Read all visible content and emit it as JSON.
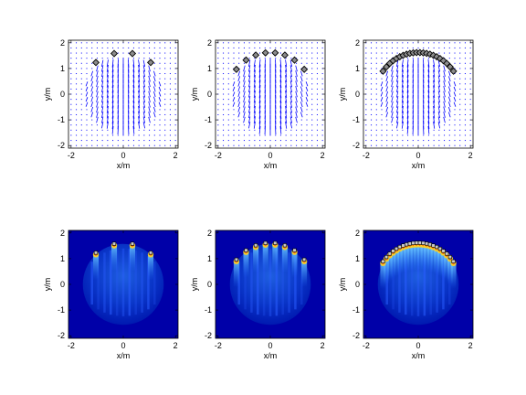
{
  "chart_data": [
    {
      "type": "quiver",
      "xlabel": "x/m",
      "ylabel": "y/m",
      "xlim": [
        -2.1,
        2.1
      ],
      "ylim": [
        -2.1,
        2.1
      ],
      "x_ticks": [
        "-2",
        "0",
        "2"
      ],
      "y_ticks": [
        "2",
        "1",
        "0",
        "-1",
        "-2"
      ],
      "sources": {
        "count": 4,
        "x_from": -1.05,
        "x_to": 1.05,
        "arc_radius": 1.62
      },
      "marker_color": "#000000",
      "vector_color": "#0000ff"
    },
    {
      "type": "quiver",
      "xlabel": "x/m",
      "ylabel": "y/m",
      "xlim": [
        -2.1,
        2.1
      ],
      "ylim": [
        -2.1,
        2.1
      ],
      "x_ticks": [
        "-2",
        "0",
        "2"
      ],
      "y_ticks": [
        "2",
        "1",
        "0",
        "-1",
        "-2"
      ],
      "sources": {
        "count": 8,
        "x_from": -1.3,
        "x_to": 1.3,
        "arc_radius": 1.62
      },
      "marker_color": "#000000",
      "vector_color": "#0000ff"
    },
    {
      "type": "quiver",
      "xlabel": "x/m",
      "ylabel": "y/m",
      "xlim": [
        -2.1,
        2.1
      ],
      "ylim": [
        -2.1,
        2.1
      ],
      "x_ticks": [
        "-2",
        "0",
        "2"
      ],
      "y_ticks": [
        "2",
        "1",
        "0",
        "-1",
        "-2"
      ],
      "sources": {
        "count": 22,
        "x_from": -1.35,
        "x_to": 1.35,
        "arc_radius": 1.62
      },
      "marker_color": "#000000",
      "vector_color": "#0000ff"
    },
    {
      "type": "heatmap",
      "xlabel": "x/m",
      "ylabel": "y/m",
      "xlim": [
        -2.1,
        2.1
      ],
      "ylim": [
        -2.1,
        2.1
      ],
      "x_ticks": [
        "-2",
        "0",
        "2"
      ],
      "y_ticks": [
        "2",
        "1",
        "0",
        "-1",
        "-2"
      ],
      "sources": {
        "count": 4,
        "x_from": -1.05,
        "x_to": 1.05,
        "arc_radius": 1.62
      },
      "background_color": "#0000a8",
      "disc_radius": 1.55
    },
    {
      "type": "heatmap",
      "xlabel": "x/m",
      "ylabel": "y/m",
      "xlim": [
        -2.1,
        2.1
      ],
      "ylim": [
        -2.1,
        2.1
      ],
      "x_ticks": [
        "-2",
        "0",
        "2"
      ],
      "y_ticks": [
        "2",
        "1",
        "0",
        "-1",
        "-2"
      ],
      "sources": {
        "count": 8,
        "x_from": -1.3,
        "x_to": 1.3,
        "arc_radius": 1.62
      },
      "background_color": "#0000a8",
      "disc_radius": 1.55
    },
    {
      "type": "heatmap",
      "xlabel": "x/m",
      "ylabel": "y/m",
      "xlim": [
        -2.1,
        2.1
      ],
      "ylim": [
        -2.1,
        2.1
      ],
      "x_ticks": [
        "-2",
        "0",
        "2"
      ],
      "y_ticks": [
        "2",
        "1",
        "0",
        "-1",
        "-2"
      ],
      "sources": {
        "count": 22,
        "x_from": -1.35,
        "x_to": 1.35,
        "arc_radius": 1.62
      },
      "background_color": "#0000a8",
      "disc_radius": 1.55
    }
  ]
}
